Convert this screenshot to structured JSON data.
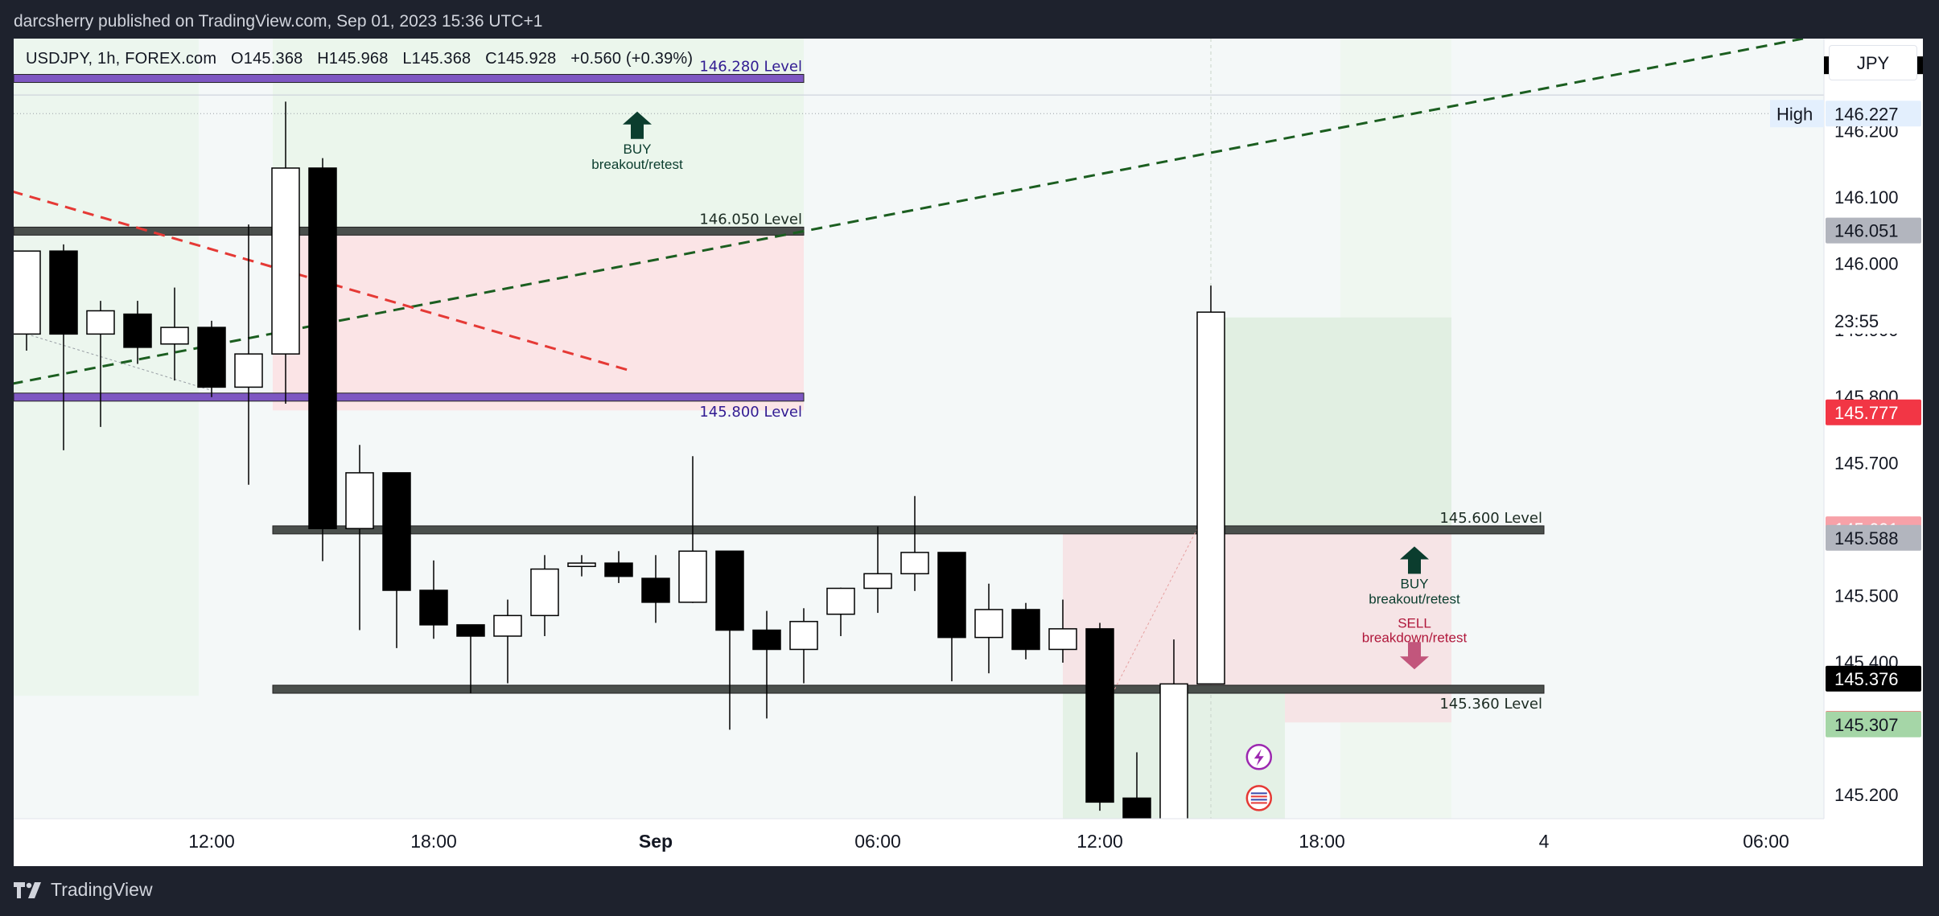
{
  "header": {
    "published_text": "darcsherry published on TradingView.com, Sep 01, 2023 15:36 UTC+1"
  },
  "legend": {
    "symbol": "USDJPY, 1h, FOREX.com",
    "open": "O145.368",
    "high": "H145.968",
    "low": "L145.368",
    "close": "C145.928",
    "change": "+0.560 (+0.39%)"
  },
  "currency_button": "JPY",
  "footer": {
    "brand": "TradingView"
  },
  "colors": {
    "bull_candle": "#ffffff",
    "bear_candle": "#000000",
    "purple_level": "#7e57c2",
    "gray_level": "#4a4f4c",
    "green_zone": "#e8f5e9",
    "red_zone": "#fbe4e6",
    "buy_arrow": "#0b3d2e",
    "sell_arrow": "#c2567c",
    "red_trend": "#e53935",
    "green_trend": "#1b5e20"
  },
  "chart_data": {
    "type": "candlestick",
    "symbol": "USDJPY",
    "interval": "1h",
    "ylim": [
      145.165,
      146.34
    ],
    "x_ticks": [
      {
        "slot": 5,
        "label": "12:00",
        "bold": false
      },
      {
        "slot": 11,
        "label": "18:00",
        "bold": false
      },
      {
        "slot": 17,
        "label": "Sep",
        "bold": true
      },
      {
        "slot": 23,
        "label": "06:00",
        "bold": false
      },
      {
        "slot": 29,
        "label": "12:00",
        "bold": false
      },
      {
        "slot": 35,
        "label": "18:00",
        "bold": false
      },
      {
        "slot": 41,
        "label": "4",
        "bold": false
      },
      {
        "slot": 47,
        "label": "06:00",
        "bold": false
      }
    ],
    "y_ticks": [
      "146.200",
      "146.100",
      "146.000",
      "145.900",
      "145.800",
      "145.700",
      "145.500",
      "145.400",
      "145.200"
    ],
    "candles": [
      {
        "slot": 0,
        "o": 145.895,
        "h": 146.02,
        "l": 145.87,
        "c": 146.02
      },
      {
        "slot": 1,
        "o": 146.02,
        "h": 146.03,
        "l": 145.72,
        "c": 145.895
      },
      {
        "slot": 2,
        "o": 145.895,
        "h": 145.945,
        "l": 145.755,
        "c": 145.93
      },
      {
        "slot": 3,
        "o": 145.925,
        "h": 145.945,
        "l": 145.85,
        "c": 145.875
      },
      {
        "slot": 4,
        "o": 145.88,
        "h": 145.965,
        "l": 145.825,
        "c": 145.905
      },
      {
        "slot": 5,
        "o": 145.905,
        "h": 145.915,
        "l": 145.8,
        "c": 145.815
      },
      {
        "slot": 6,
        "o": 145.815,
        "h": 146.06,
        "l": 145.668,
        "c": 145.865
      },
      {
        "slot": 7,
        "o": 145.865,
        "h": 146.245,
        "l": 145.79,
        "c": 146.145
      },
      {
        "slot": 8,
        "o": 146.145,
        "h": 146.16,
        "l": 145.553,
        "c": 145.602
      },
      {
        "slot": 9,
        "o": 145.602,
        "h": 145.728,
        "l": 145.449,
        "c": 145.686
      },
      {
        "slot": 10,
        "o": 145.686,
        "h": 145.686,
        "l": 145.422,
        "c": 145.509
      },
      {
        "slot": 11,
        "o": 145.509,
        "h": 145.554,
        "l": 145.436,
        "c": 145.457
      },
      {
        "slot": 12,
        "o": 145.457,
        "h": 145.457,
        "l": 145.354,
        "c": 145.44
      },
      {
        "slot": 13,
        "o": 145.44,
        "h": 145.495,
        "l": 145.369,
        "c": 145.471
      },
      {
        "slot": 14,
        "o": 145.471,
        "h": 145.562,
        "l": 145.44,
        "c": 145.541
      },
      {
        "slot": 15,
        "o": 145.545,
        "h": 145.562,
        "l": 145.53,
        "c": 145.55
      },
      {
        "slot": 16,
        "o": 145.55,
        "h": 145.568,
        "l": 145.52,
        "c": 145.53
      },
      {
        "slot": 17,
        "o": 145.527,
        "h": 145.562,
        "l": 145.46,
        "c": 145.491
      },
      {
        "slot": 18,
        "o": 145.491,
        "h": 145.711,
        "l": 145.49,
        "c": 145.568
      },
      {
        "slot": 19,
        "o": 145.568,
        "h": 145.568,
        "l": 145.299,
        "c": 145.449
      },
      {
        "slot": 20,
        "o": 145.449,
        "h": 145.478,
        "l": 145.316,
        "c": 145.42
      },
      {
        "slot": 21,
        "o": 145.42,
        "h": 145.482,
        "l": 145.369,
        "c": 145.462
      },
      {
        "slot": 22,
        "o": 145.473,
        "h": 145.513,
        "l": 145.44,
        "c": 145.512
      },
      {
        "slot": 23,
        "o": 145.512,
        "h": 145.605,
        "l": 145.475,
        "c": 145.534
      },
      {
        "slot": 24,
        "o": 145.534,
        "h": 145.651,
        "l": 145.508,
        "c": 145.566
      },
      {
        "slot": 25,
        "o": 145.566,
        "h": 145.566,
        "l": 145.372,
        "c": 145.438
      },
      {
        "slot": 26,
        "o": 145.438,
        "h": 145.519,
        "l": 145.384,
        "c": 145.48
      },
      {
        "slot": 27,
        "o": 145.48,
        "h": 145.49,
        "l": 145.405,
        "c": 145.42
      },
      {
        "slot": 28,
        "o": 145.42,
        "h": 145.495,
        "l": 145.4,
        "c": 145.451
      },
      {
        "slot": 29,
        "o": 145.451,
        "h": 145.46,
        "l": 145.177,
        "c": 145.19
      },
      {
        "slot": 30,
        "o": 145.196,
        "h": 145.265,
        "l": 145.14,
        "c": 145.14
      },
      {
        "slot": 31,
        "o": 145.14,
        "h": 145.435,
        "l": 145.14,
        "c": 145.368
      },
      {
        "slot": 32,
        "o": 145.368,
        "h": 145.968,
        "l": 145.368,
        "c": 145.928
      }
    ],
    "levels": [
      {
        "label": "146.280 Level",
        "price": 146.28,
        "slot_from": 0,
        "slot_to": 21,
        "style": "purple"
      },
      {
        "label": "146.050 Level",
        "price": 146.05,
        "slot_from": 0,
        "slot_to": 21,
        "style": "gray"
      },
      {
        "label": "145.800 Level",
        "price": 145.8,
        "slot_from": 0,
        "slot_to": 21,
        "style": "purple"
      },
      {
        "label": "145.600 Level",
        "price": 145.6,
        "slot_from": 7,
        "slot_to": 41,
        "style": "gray"
      },
      {
        "label": "145.360 Level",
        "price": 145.36,
        "slot_from": 7,
        "slot_to": 41,
        "style": "gray"
      }
    ],
    "annotations": [
      {
        "type": "buy",
        "title": "BUY",
        "subtitle": "breakout/retest",
        "slot": 16.5,
        "price": 146.23
      },
      {
        "type": "buy",
        "title": "BUY",
        "subtitle": "breakout/retest",
        "slot": 37.5,
        "price": 145.575
      },
      {
        "type": "sell",
        "title": "SELL",
        "subtitle": "breakdown/retest",
        "slot": 37.5,
        "price": 145.39
      }
    ],
    "trend_lines": [
      {
        "style": "green-dashed",
        "from": {
          "slot": -0.4,
          "price": 145.82
        },
        "to": {
          "slot": 48,
          "price": 146.34
        }
      },
      {
        "style": "red-dashed",
        "from": {
          "slot": -0.4,
          "price": 146.11
        },
        "to": {
          "slot": 16.3,
          "price": 145.84
        }
      }
    ],
    "price_labels": [
      {
        "text": "146.227",
        "price": 146.227,
        "bg": "#e3effd",
        "fg": "#131722",
        "tag": "High"
      },
      {
        "text": "146.051",
        "price": 146.051,
        "bg": "#b2b5be",
        "fg": "#131722"
      },
      {
        "text": "23:55",
        "price": 145.915,
        "bg": "#ffffff",
        "fg": "#131722"
      },
      {
        "text": "145.777",
        "price": 145.777,
        "bg": "#f23645",
        "fg": "#ffffff"
      },
      {
        "text": "145.601",
        "price": 145.601,
        "bg": "#f7a1a8",
        "fg": "#ffffff"
      },
      {
        "text": "145.588",
        "price": 145.588,
        "bg": "#b2b5be",
        "fg": "#131722"
      },
      {
        "text": "145.376",
        "price": 145.376,
        "bg": "#000000",
        "fg": "#ffffff"
      },
      {
        "text": "145.308",
        "price": 145.308,
        "bg": "#f77c80",
        "fg": "#ffffff"
      },
      {
        "text": "145.307",
        "price": 145.307,
        "bg": "#a5d6a7",
        "fg": "#131722"
      }
    ]
  }
}
